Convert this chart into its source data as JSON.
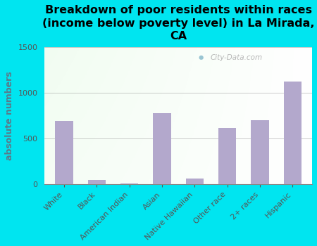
{
  "categories": [
    "White",
    "Black",
    "American Indian",
    "Asian",
    "Native Hawaiian",
    "Other race",
    "2+ races",
    "Hispanic"
  ],
  "values": [
    695,
    48,
    8,
    778,
    68,
    615,
    705,
    1125
  ],
  "bar_color": "#b3a8cc",
  "title": "Breakdown of poor residents within races\n(income below poverty level) in La Mirada,\nCA",
  "ylabel": "absolute numbers",
  "ylim": [
    0,
    1500
  ],
  "yticks": [
    0,
    500,
    1000,
    1500
  ],
  "background_outer": "#00e5f0",
  "title_fontsize": 11.5,
  "ylabel_fontsize": 9,
  "tick_fontsize": 8,
  "label_color": "#555555",
  "watermark": "City-Data.com"
}
